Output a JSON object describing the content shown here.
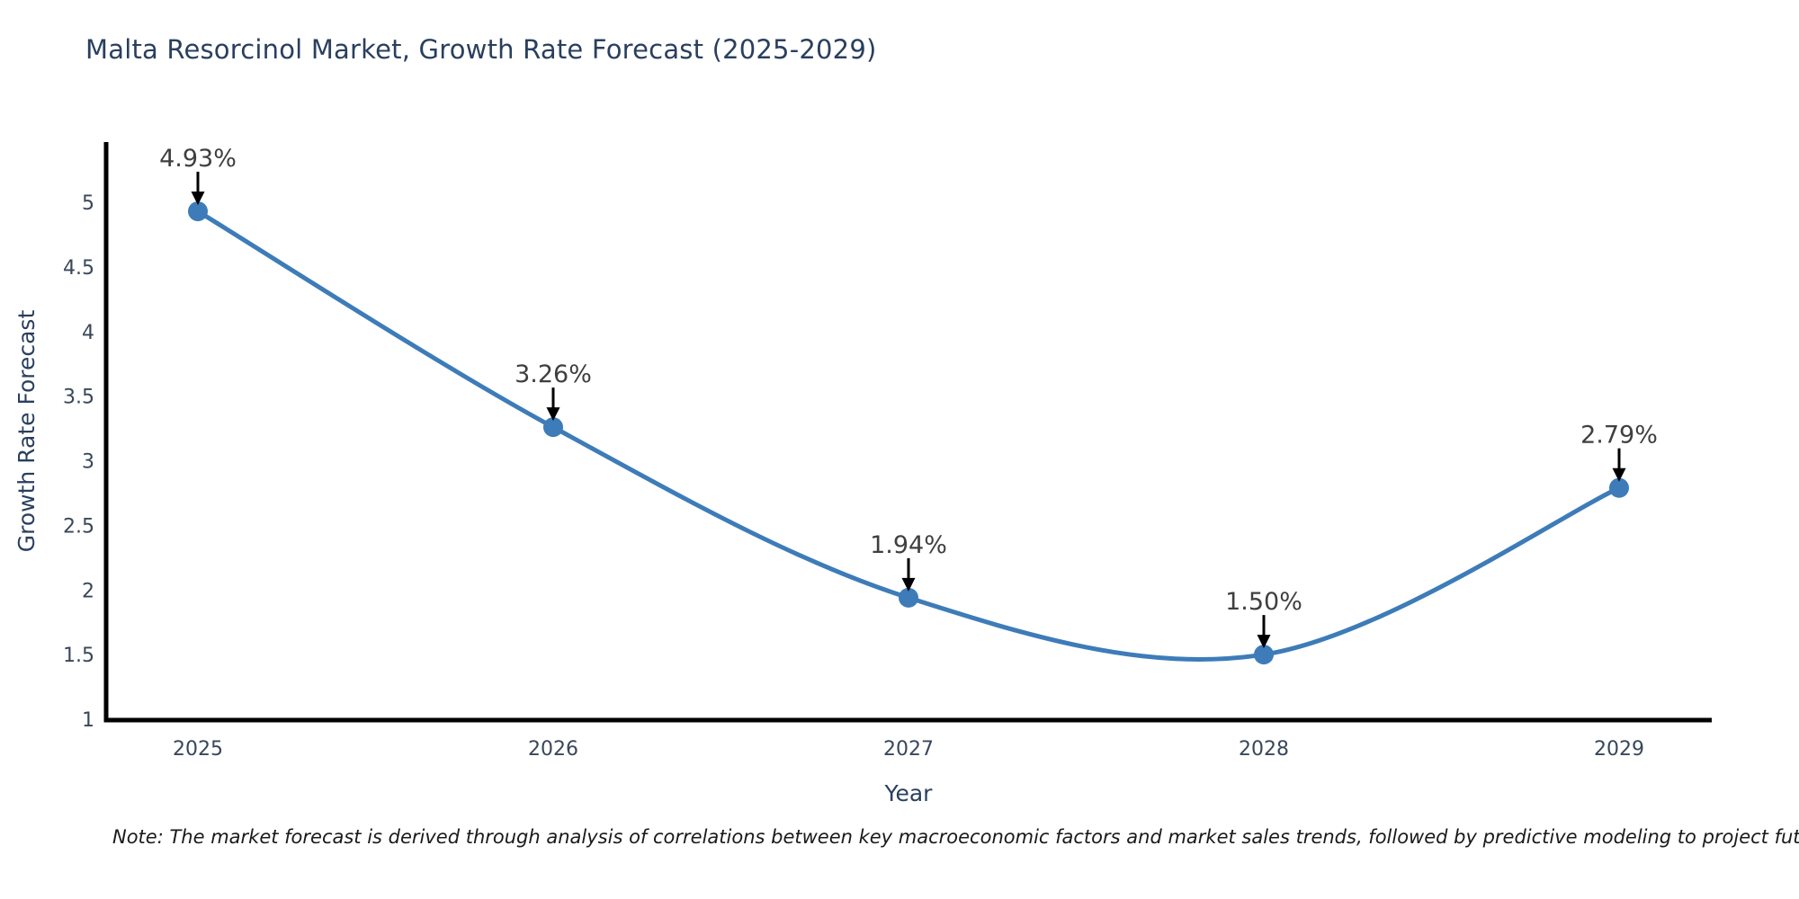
{
  "page": {
    "background": "#ffffff"
  },
  "chart_data": {
    "type": "line",
    "title": "Malta Resorcinol Market, Growth Rate Forecast (2025-2029)",
    "xlabel": "Year",
    "ylabel": "Growth Rate Forecast",
    "categories": [
      "2025",
      "2026",
      "2027",
      "2028",
      "2029"
    ],
    "series": [
      {
        "name": "Growth Rate Forecast",
        "values": [
          4.93,
          3.26,
          1.94,
          1.5,
          2.79
        ],
        "point_labels": [
          "4.93%",
          "3.26%",
          "1.94%",
          "1.50%",
          "2.79%"
        ]
      }
    ],
    "ylim": [
      1,
      5
    ],
    "ytick_values": [
      1,
      1.5,
      2,
      2.5,
      3,
      3.5,
      4,
      4.5,
      5
    ],
    "ytick_labels": [
      "1",
      "1.5",
      "2",
      "2.5",
      "3",
      "3.5",
      "4",
      "4.5",
      "5"
    ],
    "line_shape": "spline",
    "grid": false,
    "legend_position": "none",
    "colors": {
      "line": "#3d7cb8",
      "marker": "#3d7cb8",
      "annotation_text": "#3f3f3f",
      "annotation_arrow": "#000000",
      "axis_line": "#000000",
      "tick_text": "#39475a",
      "axis_title_text": "#2a3f5f",
      "title_text": "#2a3f5f"
    }
  },
  "note": {
    "text": "Note: The market forecast is derived through analysis of correlations between key macroeconomic factors and market sales trends, followed by predictive modeling to project future sales"
  }
}
